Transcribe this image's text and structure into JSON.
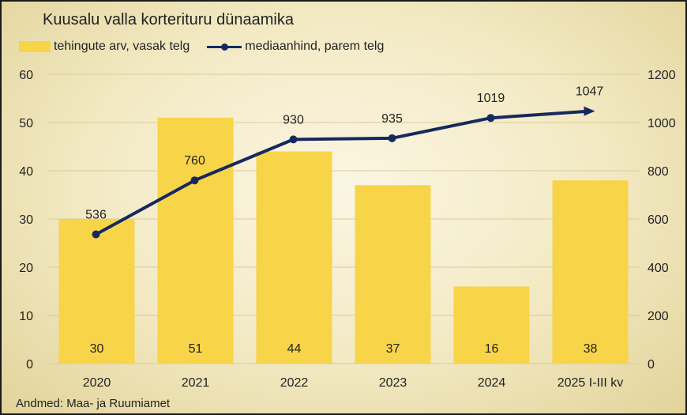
{
  "title": "Kuusalu valla korterituru dünaamika",
  "legend": {
    "bars": "tehingute arv, vasak telg",
    "line": "mediaanhind, parem telg"
  },
  "source": "Andmed: Maa- ja Ruumiamet",
  "colors": {
    "bar": "#f8d448",
    "line": "#16295e",
    "grid": "#d8cc98"
  },
  "chart_data": {
    "type": "bar",
    "categories": [
      "2020",
      "2021",
      "2022",
      "2023",
      "2024",
      "2025 I-III kv"
    ],
    "series": [
      {
        "name": "tehingute arv, vasak telg",
        "type": "bar",
        "axis": "left",
        "values": [
          30,
          51,
          44,
          37,
          16,
          38
        ]
      },
      {
        "name": "mediaanhind, parem telg",
        "type": "line",
        "axis": "right",
        "values": [
          536,
          760,
          930,
          935,
          1019,
          1047
        ]
      }
    ],
    "left_axis": {
      "ylim": [
        0,
        60
      ],
      "ticks": [
        "0",
        "10",
        "20",
        "30",
        "40",
        "50",
        "60"
      ]
    },
    "right_axis": {
      "ylim": [
        0,
        1200
      ],
      "ticks": [
        "0",
        "200",
        "400",
        "600",
        "800",
        "1000",
        "1200"
      ]
    },
    "grid": true,
    "legend_position": "top-left"
  }
}
